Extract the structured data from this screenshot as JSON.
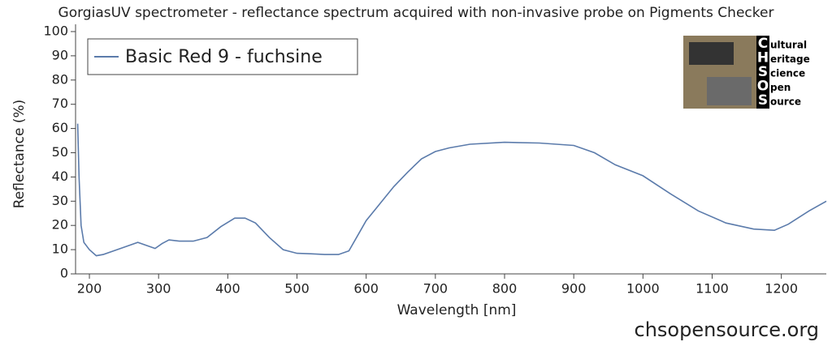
{
  "chart_data": {
    "type": "line",
    "title": "GorgiasUV spectrometer - reflectance spectrum acquired with non-invasive probe on Pigments Checker",
    "x_label": "Wavelength [nm]",
    "y_label": "Reflectance (%)",
    "xlim": [
      180,
      1265
    ],
    "ylim": [
      0,
      103
    ],
    "xticks": [
      200,
      300,
      400,
      500,
      600,
      700,
      800,
      900,
      1000,
      1100,
      1200
    ],
    "yticks": [
      0,
      10,
      20,
      30,
      40,
      50,
      60,
      70,
      80,
      90,
      100
    ],
    "legend": "top-left",
    "series": [
      {
        "name": "Basic Red 9 - fuchsine",
        "color": "#5b7bab",
        "x": [
          183,
          185,
          188,
          192,
          200,
          210,
          220,
          235,
          250,
          270,
          285,
          295,
          305,
          315,
          330,
          350,
          370,
          390,
          410,
          425,
          440,
          460,
          480,
          500,
          520,
          540,
          560,
          575,
          590,
          600,
          620,
          640,
          660,
          680,
          700,
          720,
          750,
          800,
          850,
          900,
          930,
          960,
          1000,
          1040,
          1080,
          1120,
          1160,
          1190,
          1210,
          1240,
          1265
        ],
        "values": [
          62,
          40,
          20,
          13,
          10,
          7.5,
          8,
          9.5,
          11,
          13,
          11.5,
          10.5,
          12.5,
          14,
          13.5,
          13.5,
          15,
          19.5,
          23,
          23,
          21,
          15,
          10,
          8.5,
          8.3,
          8,
          8,
          9.5,
          17,
          22,
          29,
          36,
          42,
          47.5,
          50.5,
          52,
          53.5,
          54.3,
          54,
          53,
          50,
          45,
          40.5,
          33,
          26,
          21,
          18.5,
          18,
          20.5,
          26,
          30
        ]
      }
    ]
  },
  "logo": {
    "letters": [
      "C",
      "H",
      "S",
      "O",
      "S"
    ],
    "words": [
      "ultural",
      "eritage",
      "cience",
      "pen",
      "ource"
    ]
  },
  "footer": "chsopensource.org"
}
